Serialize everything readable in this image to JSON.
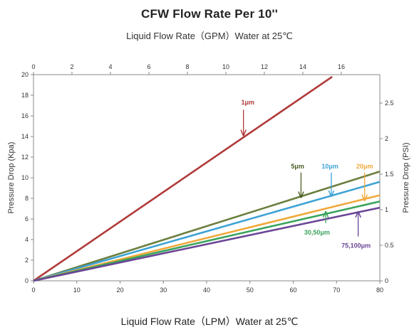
{
  "chart_data": {
    "type": "line",
    "title": "CFW   Flow Rate Per 10''",
    "top_axis_label": "Liquid Flow Rate（GPM）Water  at  25℃",
    "xlabel": "Liquid Flow Rate（LPM）Water  at  25℃",
    "ylabel": "Pressure Drop  (Kpa)",
    "ylabel_right": "Pressure Drop   (PSI)",
    "xlim": [
      0,
      80
    ],
    "ylim": [
      0,
      20
    ],
    "x_ticks": [
      0,
      10,
      20,
      30,
      40,
      50,
      60,
      70,
      80
    ],
    "y_ticks": [
      0,
      2,
      4,
      6,
      8,
      10,
      12,
      14,
      16,
      18,
      20
    ],
    "top_xlim": [
      0,
      18
    ],
    "top_ticks": [
      0,
      2,
      4,
      6,
      8,
      10,
      12,
      14,
      16
    ],
    "right_ylim": [
      0,
      2.9
    ],
    "right_ticks": [
      "0",
      "0.5",
      "1",
      "1.5",
      "2",
      "2.5"
    ],
    "right_tick_values": [
      0,
      0.5,
      1,
      1.5,
      2,
      2.5
    ],
    "grid": false,
    "series": [
      {
        "name": "1μm",
        "color": "#b03a3a",
        "x": [
          0,
          69
        ],
        "y": [
          0,
          19.8
        ]
      },
      {
        "name": "5μm",
        "color": "#6b7f3e",
        "x": [
          0,
          80
        ],
        "y": [
          0,
          10.6
        ]
      },
      {
        "name": "10μm",
        "color": "#3da3d6",
        "x": [
          0,
          80
        ],
        "y": [
          0,
          9.6
        ]
      },
      {
        "name": "20μm",
        "color": "#f0a93a",
        "x": [
          0,
          80
        ],
        "y": [
          0,
          8.3
        ]
      },
      {
        "name": "30,50μm",
        "color": "#3aa35c",
        "x": [
          0,
          80
        ],
        "y": [
          0,
          7.7
        ]
      },
      {
        "name": "75,100μm",
        "color": "#6a4596",
        "x": [
          0,
          80
        ],
        "y": [
          0,
          7.1
        ]
      }
    ],
    "annotations": [
      {
        "text": "1μm",
        "color": "#b03a3a",
        "tx": 49.5,
        "ty": 17.3,
        "ax": 48.5,
        "ay": 14.1,
        "arrow_from": [
          48.5,
          16.6
        ]
      },
      {
        "text": "5μm",
        "color": "#4a5e23",
        "tx": 61,
        "ty": 11.1,
        "ax": 61.8,
        "ay": 8.1,
        "arrow_from": [
          61.8,
          10.5
        ]
      },
      {
        "text": "10μm",
        "color": "#3da3d6",
        "tx": 68.5,
        "ty": 11.1,
        "ax": 68.8,
        "ay": 8.2,
        "arrow_from": [
          68.8,
          10.5
        ]
      },
      {
        "text": "20μm",
        "color": "#f0a93a",
        "tx": 76.5,
        "ty": 11.1,
        "ax": 76.5,
        "ay": 7.8,
        "arrow_from": [
          76.5,
          10.5
        ]
      },
      {
        "text": "30,50μm",
        "color": "#3aa35c",
        "tx": 65.5,
        "ty": 4.7,
        "ax": 67.5,
        "ay": 6.7,
        "arrow_from": [
          67.5,
          5.6
        ]
      },
      {
        "text": "75,100μm",
        "color": "#6a4596",
        "tx": 74.5,
        "ty": 3.4,
        "ax": 75,
        "ay": 6.7,
        "arrow_from": [
          75,
          4.3
        ]
      }
    ]
  }
}
